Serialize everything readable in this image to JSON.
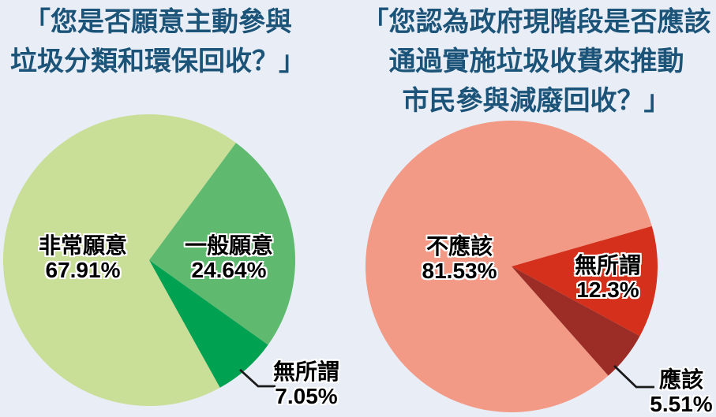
{
  "page": {
    "background_color": "#e8edf6",
    "title_color": "#1b5478",
    "label_text_color": "#000000",
    "label_outline_color": "#ffffff",
    "leader_line_color": "#1a1a1a"
  },
  "chart_data": [
    {
      "type": "pie",
      "title": "「您是否願意主動參與垃圾分類和環保回收？」",
      "title_lines": [
        "「您是否願意主動參與",
        "垃圾分類和環保回收？」"
      ],
      "labels": [
        "非常願意",
        "一般願意",
        "無所謂"
      ],
      "values": [
        67.91,
        24.64,
        7.05
      ],
      "pct_labels": [
        "67.91%",
        "24.64%",
        "7.05%"
      ],
      "colors": [
        "#c9df97",
        "#5fba70",
        "#00a251"
      ],
      "start_angle_deg": 151,
      "legend_position": "labels-on-slices",
      "grid": false
    },
    {
      "type": "pie",
      "title": "「您認為政府現階段是否應該通過實施垃圾收費來推動市民參與減廢回收？」",
      "title_lines": [
        "「您認為政府現階段是否應該",
        "通過實施垃圾收費來推動",
        "市民參與減廢回收？」"
      ],
      "labels": [
        "不應該",
        "無所謂",
        "應該"
      ],
      "values": [
        81.53,
        12.3,
        5.51
      ],
      "pct_labels": [
        "81.53%",
        "12.3%",
        "5.51%"
      ],
      "colors": [
        "#f29a85",
        "#d5301b",
        "#9b2d26"
      ],
      "start_angle_deg": 138.5,
      "legend_position": "labels-on-slices",
      "grid": false
    }
  ]
}
